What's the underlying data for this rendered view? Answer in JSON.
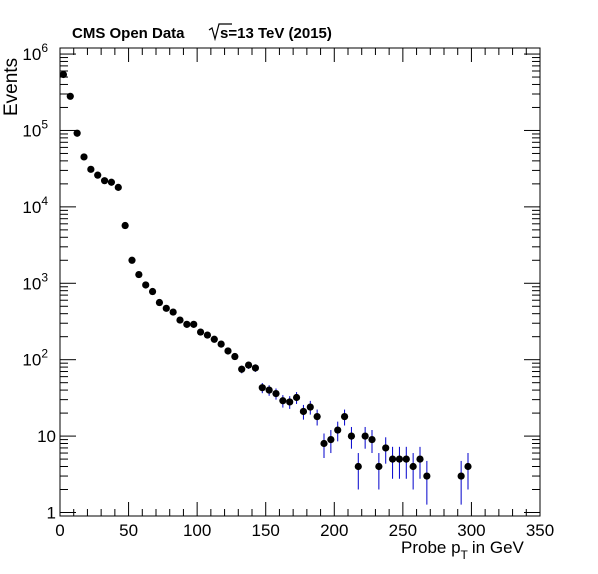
{
  "chart_data": {
    "type": "scatter",
    "title": "CMS Open Data",
    "energy_label": "s=13 TeV (2015)",
    "ylabel": "Events",
    "xlabel_main": "Probe p",
    "xlabel_sub": "T",
    "xlabel_tail": "in GeV",
    "xlim": [
      0,
      350
    ],
    "ylim": [
      0.9,
      1200000
    ],
    "y_scale": "log",
    "x_ticks": [
      0,
      50,
      100,
      150,
      200,
      250,
      300,
      350
    ],
    "x_tick_labels": [
      "0",
      "50",
      "100",
      "150",
      "200",
      "250",
      "300",
      "350"
    ],
    "y_ticks": [
      {
        "value": 1,
        "label": "1",
        "exp": ""
      },
      {
        "value": 10,
        "label": "10",
        "exp": ""
      },
      {
        "value": 100,
        "label": "10",
        "exp": "2"
      },
      {
        "value": 1000,
        "label": "10",
        "exp": "3"
      },
      {
        "value": 10000,
        "label": "10",
        "exp": "4"
      },
      {
        "value": 100000,
        "label": "10",
        "exp": "5"
      },
      {
        "value": 1000000,
        "label": "10",
        "exp": "6"
      }
    ],
    "marker_color": "#000000",
    "error_color": "#0000cc",
    "series": [
      {
        "x": [
          2.5,
          7.5,
          12.5,
          17.5,
          22.5,
          27.5,
          32.5,
          37.5,
          42.5,
          47.5,
          52.5,
          57.5,
          62.5,
          67.5,
          72.5,
          77.5,
          82.5,
          87.5,
          92.5,
          97.5,
          102.5,
          107.5,
          112.5,
          117.5,
          122.5,
          127.5,
          132.5,
          137.5,
          142.5,
          147.5,
          152.5,
          157.5,
          162.5,
          167.5,
          172.5,
          177.5,
          182.5,
          187.5,
          192.5,
          197.5,
          202.5,
          207.5,
          212.5,
          217.5,
          222.5,
          227.5,
          232.5,
          237.5,
          242.5,
          247.5,
          252.5,
          257.5,
          262.5,
          267.5,
          292.5,
          297.5
        ],
        "y": [
          540000,
          280000,
          92000,
          45000,
          31000,
          26000,
          22000,
          21000,
          18000,
          5700,
          2000,
          1300,
          950,
          780,
          560,
          470,
          420,
          330,
          290,
          290,
          230,
          210,
          185,
          160,
          130,
          110,
          75,
          85,
          78,
          43,
          40,
          36,
          29,
          28,
          32,
          21,
          24,
          18,
          8,
          9,
          12,
          18,
          10,
          4,
          10,
          9,
          4,
          7,
          5,
          5,
          5,
          4,
          5,
          3,
          3,
          4
        ]
      }
    ]
  }
}
